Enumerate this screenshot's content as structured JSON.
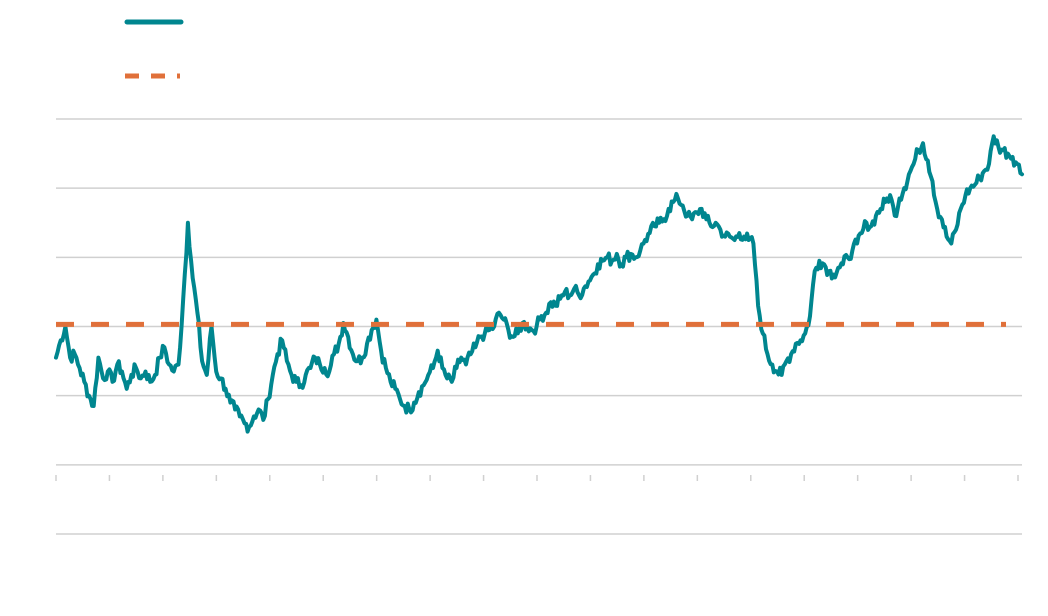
{
  "chart_data": {
    "type": "line",
    "title": "",
    "xlabel": "",
    "ylabel": "",
    "grid": true,
    "legend_position": "top-left",
    "colors": {
      "series": "#00868F",
      "average": "#E0703A",
      "grid": "#D0D0D0"
    },
    "ylim": [
      -2,
      4
    ],
    "y_gridlines": [
      -2,
      -1,
      0,
      1,
      2,
      3,
      4
    ],
    "x_ticks": 19,
    "series": [
      {
        "style": "solid",
        "color": "#00868F",
        "values": [
          0.55,
          0.8,
          1.0,
          0.55,
          0.6,
          0.4,
          0.2,
          0.0,
          -0.15,
          0.55,
          0.25,
          0.35,
          0.2,
          0.45,
          0.35,
          0.1,
          0.3,
          0.4,
          0.25,
          0.35,
          0.2,
          0.3,
          0.55,
          0.7,
          0.45,
          0.35,
          0.45,
          1.4,
          2.5,
          1.7,
          1.2,
          0.5,
          0.3,
          1.0,
          0.35,
          0.25,
          0.1,
          -0.1,
          -0.2,
          -0.3,
          -0.4,
          -0.45,
          -0.3,
          -0.2,
          -0.35,
          -0.05,
          0.3,
          0.6,
          0.8,
          0.5,
          0.3,
          0.2,
          0.15,
          0.3,
          0.4,
          0.55,
          0.45,
          0.4,
          0.35,
          0.6,
          0.75,
          1.05,
          0.85,
          0.6,
          0.5,
          0.55,
          0.75,
          0.95,
          1.1,
          0.65,
          0.4,
          0.2,
          0.1,
          -0.05,
          -0.15,
          -0.2,
          -0.1,
          0.05,
          0.15,
          0.3,
          0.4,
          0.65,
          0.4,
          0.25,
          0.2,
          0.4,
          0.55,
          0.45,
          0.6,
          0.7,
          0.85,
          0.9,
          0.95,
          1.0,
          1.2,
          1.1,
          0.95,
          0.85,
          0.9,
          1.05,
          1.0,
          0.95,
          1.0,
          1.15,
          1.2,
          1.35,
          1.3,
          1.4,
          1.5,
          1.45,
          1.55,
          1.45,
          1.55,
          1.65,
          1.75,
          1.9,
          1.95,
          2.0,
          1.95,
          2.05,
          1.9,
          2.0,
          2.05,
          2.0,
          2.1,
          2.25,
          2.35,
          2.45,
          2.5,
          2.55,
          2.7,
          2.8,
          2.85,
          2.75,
          2.6,
          2.55,
          2.65,
          2.7,
          2.55,
          2.45,
          2.5,
          2.4,
          2.3,
          2.3,
          2.25,
          2.35,
          2.3,
          2.25,
          2.2,
          1.3,
          0.9,
          0.6,
          0.45,
          0.35,
          0.3,
          0.5,
          0.6,
          0.75,
          0.8,
          0.9,
          1.15,
          1.8,
          1.95,
          1.9,
          1.8,
          1.75,
          1.85,
          1.9,
          2.0,
          2.1,
          2.2,
          2.35,
          2.5,
          2.45,
          2.6,
          2.7,
          2.8,
          2.9,
          2.6,
          2.85,
          3.0,
          3.2,
          3.35,
          3.55,
          3.65,
          3.4,
          3.1,
          2.7,
          2.55,
          2.3,
          2.2,
          2.4,
          2.7,
          2.9,
          3.0,
          3.05,
          3.15,
          3.25,
          3.35,
          3.75,
          3.6,
          3.55,
          3.5,
          3.45,
          3.35,
          3.2
        ]
      },
      {
        "style": "dashed",
        "color": "#E0703A",
        "values": [
          1.03
        ]
      }
    ]
  }
}
